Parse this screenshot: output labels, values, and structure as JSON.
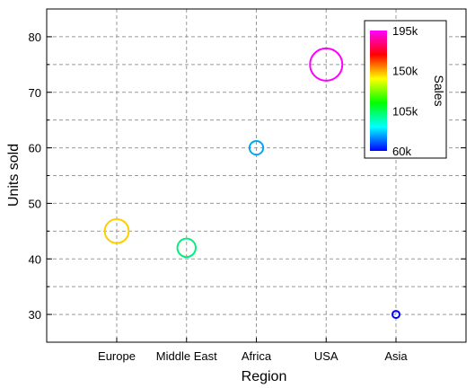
{
  "chart_data": {
    "type": "scatter",
    "title": "",
    "xlabel": "Region",
    "ylabel": "Units sold",
    "categories": [
      "Europe",
      "Middle East",
      "Africa",
      "USA",
      "Asia"
    ],
    "ylim": [
      25,
      85
    ],
    "yticks": [
      30,
      40,
      50,
      60,
      70,
      80
    ],
    "grid": true,
    "size_encodes": "Sales",
    "points": [
      {
        "category": "Europe",
        "units_sold": 45,
        "sales": 150000,
        "color": "#ffcc00"
      },
      {
        "category": "Middle East",
        "units_sold": 42,
        "sales": 120000,
        "color": "#00f07a"
      },
      {
        "category": "Africa",
        "units_sold": 60,
        "sales": 95000,
        "color": "#00a8f0"
      },
      {
        "category": "USA",
        "units_sold": 75,
        "sales": 195000,
        "color": "#ff00ff"
      },
      {
        "category": "Asia",
        "units_sold": 30,
        "sales": 60000,
        "color": "#0000ff"
      }
    ],
    "colorbar": {
      "label": "Sales",
      "ticks": [
        "195k",
        "150k",
        "105k",
        "60k"
      ],
      "tick_values": [
        195000,
        150000,
        105000,
        60000
      ],
      "range": [
        60000,
        195000
      ],
      "colors": [
        "#ff00ff",
        "#ff0000",
        "#ffff00",
        "#00ff00",
        "#00ffff",
        "#0000ff"
      ],
      "placement": "top-right"
    }
  }
}
